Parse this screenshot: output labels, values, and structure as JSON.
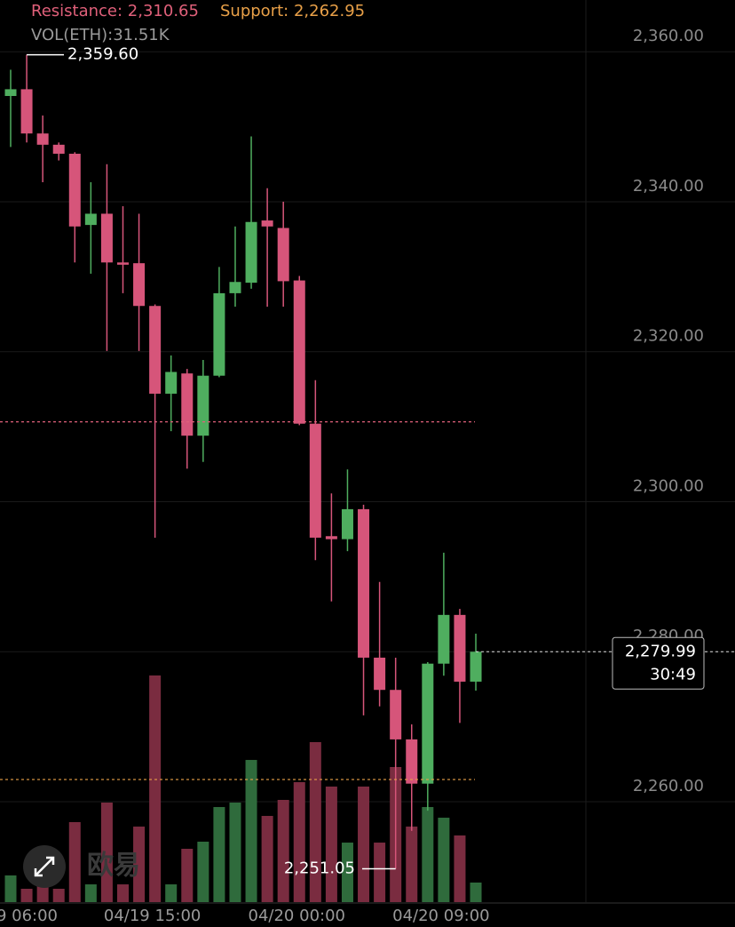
{
  "chart_data": {
    "type": "candlestick",
    "categories": [
      "9 06:00",
      null,
      null,
      null,
      null,
      null,
      null,
      null,
      null,
      "04/19 15:00",
      null,
      null,
      null,
      null,
      null,
      null,
      null,
      null,
      "04/20 00:00",
      null,
      null,
      null,
      null,
      null,
      null,
      null,
      null,
      "04/20 09:00",
      null,
      null
    ],
    "open": [
      2354.1,
      2355.0,
      2349.1,
      2347.6,
      2346.4,
      2336.9,
      2338.4,
      2331.9,
      2331.8,
      2326.1,
      2314.4,
      2317.1,
      2308.8,
      2316.8,
      2327.8,
      2329.2,
      2337.5,
      2336.5,
      2329.5,
      2310.4,
      2295.4,
      2295.0,
      2299.0,
      2279.2,
      2274.9,
      2268.3,
      2262.4,
      2278.4,
      2284.9,
      2276.0
    ],
    "high": [
      2357.6,
      2359.6,
      2351.5,
      2347.9,
      2346.6,
      2342.6,
      2345.0,
      2339.4,
      2338.4,
      2326.3,
      2319.5,
      2317.7,
      2318.9,
      2331.3,
      2336.7,
      2348.7,
      2341.8,
      2340.0,
      2330.1,
      2316.2,
      2301.1,
      2304.3,
      2299.6,
      2289.3,
      2279.2,
      2270.3,
      2278.6,
      2293.2,
      2285.7,
      2282.4
    ],
    "low": [
      2347.3,
      2347.9,
      2342.6,
      2345.5,
      2331.9,
      2330.4,
      2320.1,
      2327.8,
      2320.1,
      2295.2,
      2309.4,
      2304.4,
      2305.3,
      2316.6,
      2326.0,
      2328.4,
      2326.0,
      2326.0,
      2310.2,
      2292.2,
      2286.7,
      2293.4,
      2271.5,
      2272.7,
      2251.05,
      2256.1,
      2258.8,
      2276.8,
      2270.5,
      2274.8
    ],
    "close": [
      2355.0,
      2349.1,
      2347.6,
      2346.4,
      2336.7,
      2338.4,
      2331.9,
      2331.6,
      2326.1,
      2314.4,
      2317.3,
      2308.8,
      2316.8,
      2327.8,
      2329.3,
      2337.3,
      2336.7,
      2329.4,
      2310.4,
      2295.2,
      2295.0,
      2299.0,
      2279.2,
      2274.9,
      2268.3,
      2262.4,
      2278.4,
      2284.9,
      2276.0,
      2279.99
    ],
    "volume": [
      43.0,
      21.5,
      35.8,
      21.5,
      128.9,
      28.6,
      160.4,
      28.6,
      121.7,
      365.2,
      28.6,
      85.9,
      97.4,
      153.2,
      160.4,
      229.1,
      138.9,
      164.7,
      193.3,
      257.8,
      186.2,
      95.9,
      186.2,
      95.9,
      217.7,
      121.7,
      153.2,
      136.0,
      107.4,
      31.51
    ],
    "volume_label": "VOL(ETH):31.51K",
    "up_color": "#4fae5f",
    "down_color": "#d6557a",
    "up_volume_color": "#2f6b3c",
    "down_volume_color": "#7a2c40",
    "ylim": [
      2246.6,
      2366.9
    ],
    "yticks": [
      {
        "value": 2260,
        "label": "2,260.00"
      },
      {
        "value": 2280,
        "label": "2,280.00"
      },
      {
        "value": 2300,
        "label": "2,300.00"
      },
      {
        "value": 2320,
        "label": "2,320.00"
      },
      {
        "value": 2340,
        "label": "2,340.00"
      },
      {
        "value": 2360,
        "label": "2,360.00"
      }
    ],
    "grid": true,
    "resistance": {
      "label": "Resistance:",
      "value": 2310.65,
      "value_label": "2,310.65",
      "color": "#e0607a"
    },
    "support": {
      "label": "Support:",
      "value": 2262.95,
      "value_label": "2,262.95",
      "color": "#e8a048"
    },
    "high_marker": {
      "value": 2359.6,
      "label": "2,359.60"
    },
    "low_marker": {
      "value": 2251.05,
      "label": "2,251.05"
    },
    "last_price": {
      "value": 2279.99,
      "label": "2,279.99",
      "countdown": "30:49"
    },
    "watermark": "欧易"
  }
}
